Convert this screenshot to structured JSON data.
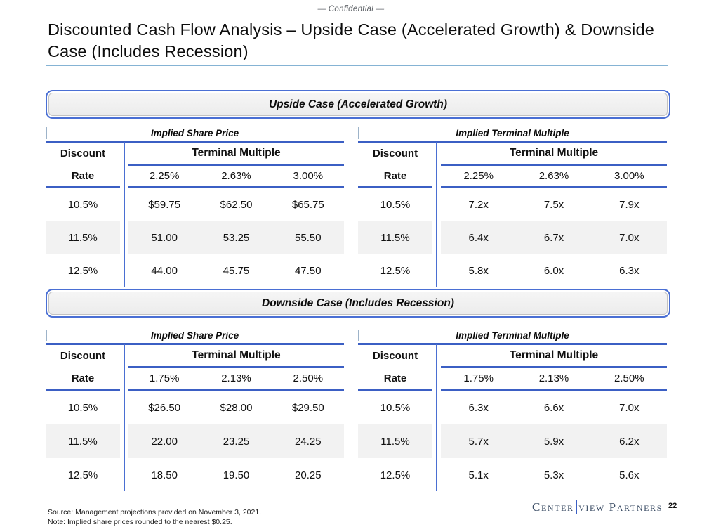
{
  "page": {
    "confidential": "— Confidential —",
    "title": "Discounted Cash Flow Analysis – Upside Case (Accelerated Growth) & Downside Case (Includes Recession)",
    "page_number": "22"
  },
  "cases": [
    {
      "banner": "Upside Case (Accelerated Growth)",
      "tables": [
        {
          "title": "Implied Share Price",
          "row_header_top": "Discount",
          "row_header_bottom": "Rate",
          "col_group": "Terminal Multiple",
          "columns": [
            "2.25%",
            "2.63%",
            "3.00%"
          ],
          "rows": [
            {
              "rate": "10.5%",
              "values": [
                "$59.75",
                "$62.50",
                "$65.75"
              ]
            },
            {
              "rate": "11.5%",
              "values": [
                "51.00",
                "53.25",
                "55.50"
              ]
            },
            {
              "rate": "12.5%",
              "values": [
                "44.00",
                "45.75",
                "47.50"
              ]
            }
          ]
        },
        {
          "title": "Implied Terminal Multiple",
          "row_header_top": "Discount",
          "row_header_bottom": "Rate",
          "col_group": "Terminal Multiple",
          "columns": [
            "2.25%",
            "2.63%",
            "3.00%"
          ],
          "rows": [
            {
              "rate": "10.5%",
              "values": [
                "7.2x",
                "7.5x",
                "7.9x"
              ]
            },
            {
              "rate": "11.5%",
              "values": [
                "6.4x",
                "6.7x",
                "7.0x"
              ]
            },
            {
              "rate": "12.5%",
              "values": [
                "5.8x",
                "6.0x",
                "6.3x"
              ]
            }
          ]
        }
      ]
    },
    {
      "banner": "Downside Case (Includes Recession)",
      "tables": [
        {
          "title": "Implied Share Price",
          "row_header_top": "Discount",
          "row_header_bottom": "Rate",
          "col_group": "Terminal Multiple",
          "columns": [
            "1.75%",
            "2.13%",
            "2.50%"
          ],
          "rows": [
            {
              "rate": "10.5%",
              "values": [
                "$26.50",
                "$28.00",
                "$29.50"
              ]
            },
            {
              "rate": "11.5%",
              "values": [
                "22.00",
                "23.25",
                "24.25"
              ]
            },
            {
              "rate": "12.5%",
              "values": [
                "18.50",
                "19.50",
                "20.25"
              ]
            }
          ]
        },
        {
          "title": "Implied Terminal Multiple",
          "row_header_top": "Discount",
          "row_header_bottom": "Rate",
          "col_group": "Terminal Multiple",
          "columns": [
            "1.75%",
            "2.13%",
            "2.50%"
          ],
          "rows": [
            {
              "rate": "10.5%",
              "values": [
                "6.3x",
                "6.6x",
                "7.0x"
              ]
            },
            {
              "rate": "11.5%",
              "values": [
                "5.7x",
                "5.9x",
                "6.2x"
              ]
            },
            {
              "rate": "12.5%",
              "values": [
                "5.1x",
                "5.3x",
                "5.6x"
              ]
            }
          ]
        }
      ]
    }
  ],
  "footer": {
    "source": "Source: Management projections provided on November 3, 2021.",
    "note": "Note: Implied share prices rounded to the nearest $0.25.",
    "logo_left": "Center",
    "logo_right": "view Partners"
  },
  "colors": {
    "accent_blue": "#3b5fc4",
    "banner_border_blue": "#4a6fd4",
    "stripe_gray": "#f2f2f2",
    "title_rule_blue": "#85b3d4",
    "logo_navy": "#3c4e66"
  }
}
